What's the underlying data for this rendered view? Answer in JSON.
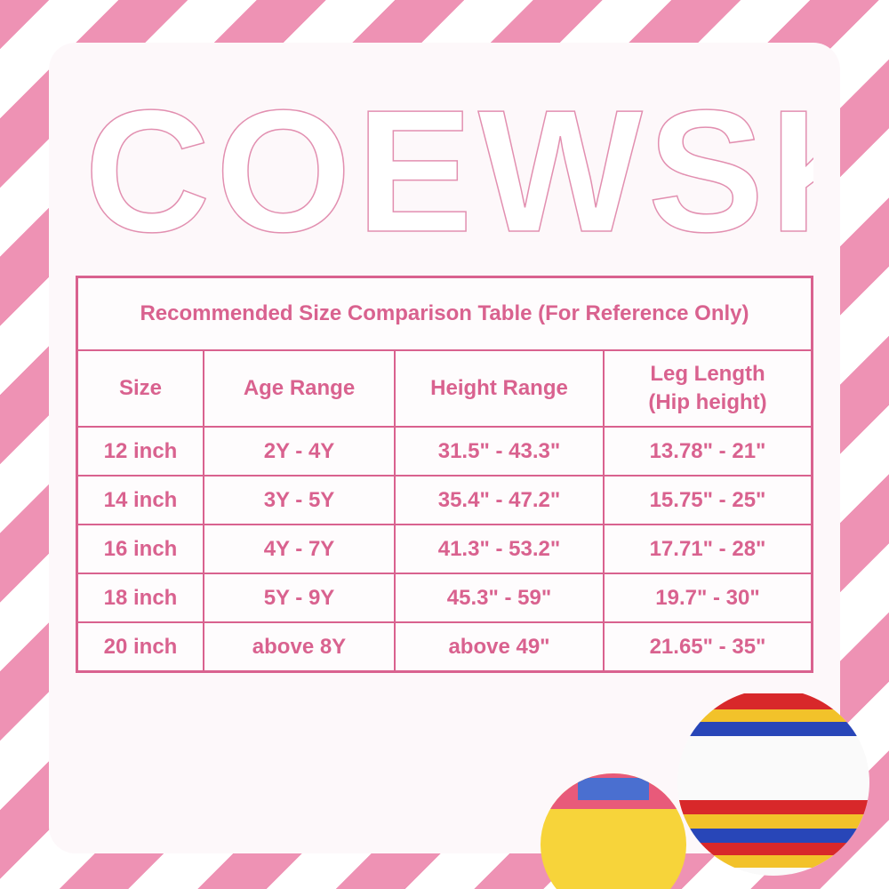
{
  "brand": "COEWSKE",
  "table": {
    "title": "Recommended Size Comparison Table (For Reference Only)",
    "headers": [
      "Size",
      "Age Range",
      "Height Range",
      "Leg Length (Hip height)"
    ],
    "rows": [
      [
        "12 inch",
        "2Y - 4Y",
        "31.5\" - 43.3\"",
        "13.78\" - 21\""
      ],
      [
        "14 inch",
        "3Y - 5Y",
        "35.4\" - 47.2\"",
        "15.75\" - 25\""
      ],
      [
        "16 inch",
        "4Y - 7Y",
        "41.3\" - 53.2\"",
        "17.71\" - 28\""
      ],
      [
        "18 inch",
        "5Y - 9Y",
        "45.3\" - 59\"",
        "19.7\" - 30\""
      ],
      [
        "20 inch",
        "above 8Y",
        "above 49\"",
        "21.65\" - 35\""
      ]
    ]
  },
  "colors": {
    "accent": "#d9628f",
    "stripe": "#ee92b4"
  }
}
